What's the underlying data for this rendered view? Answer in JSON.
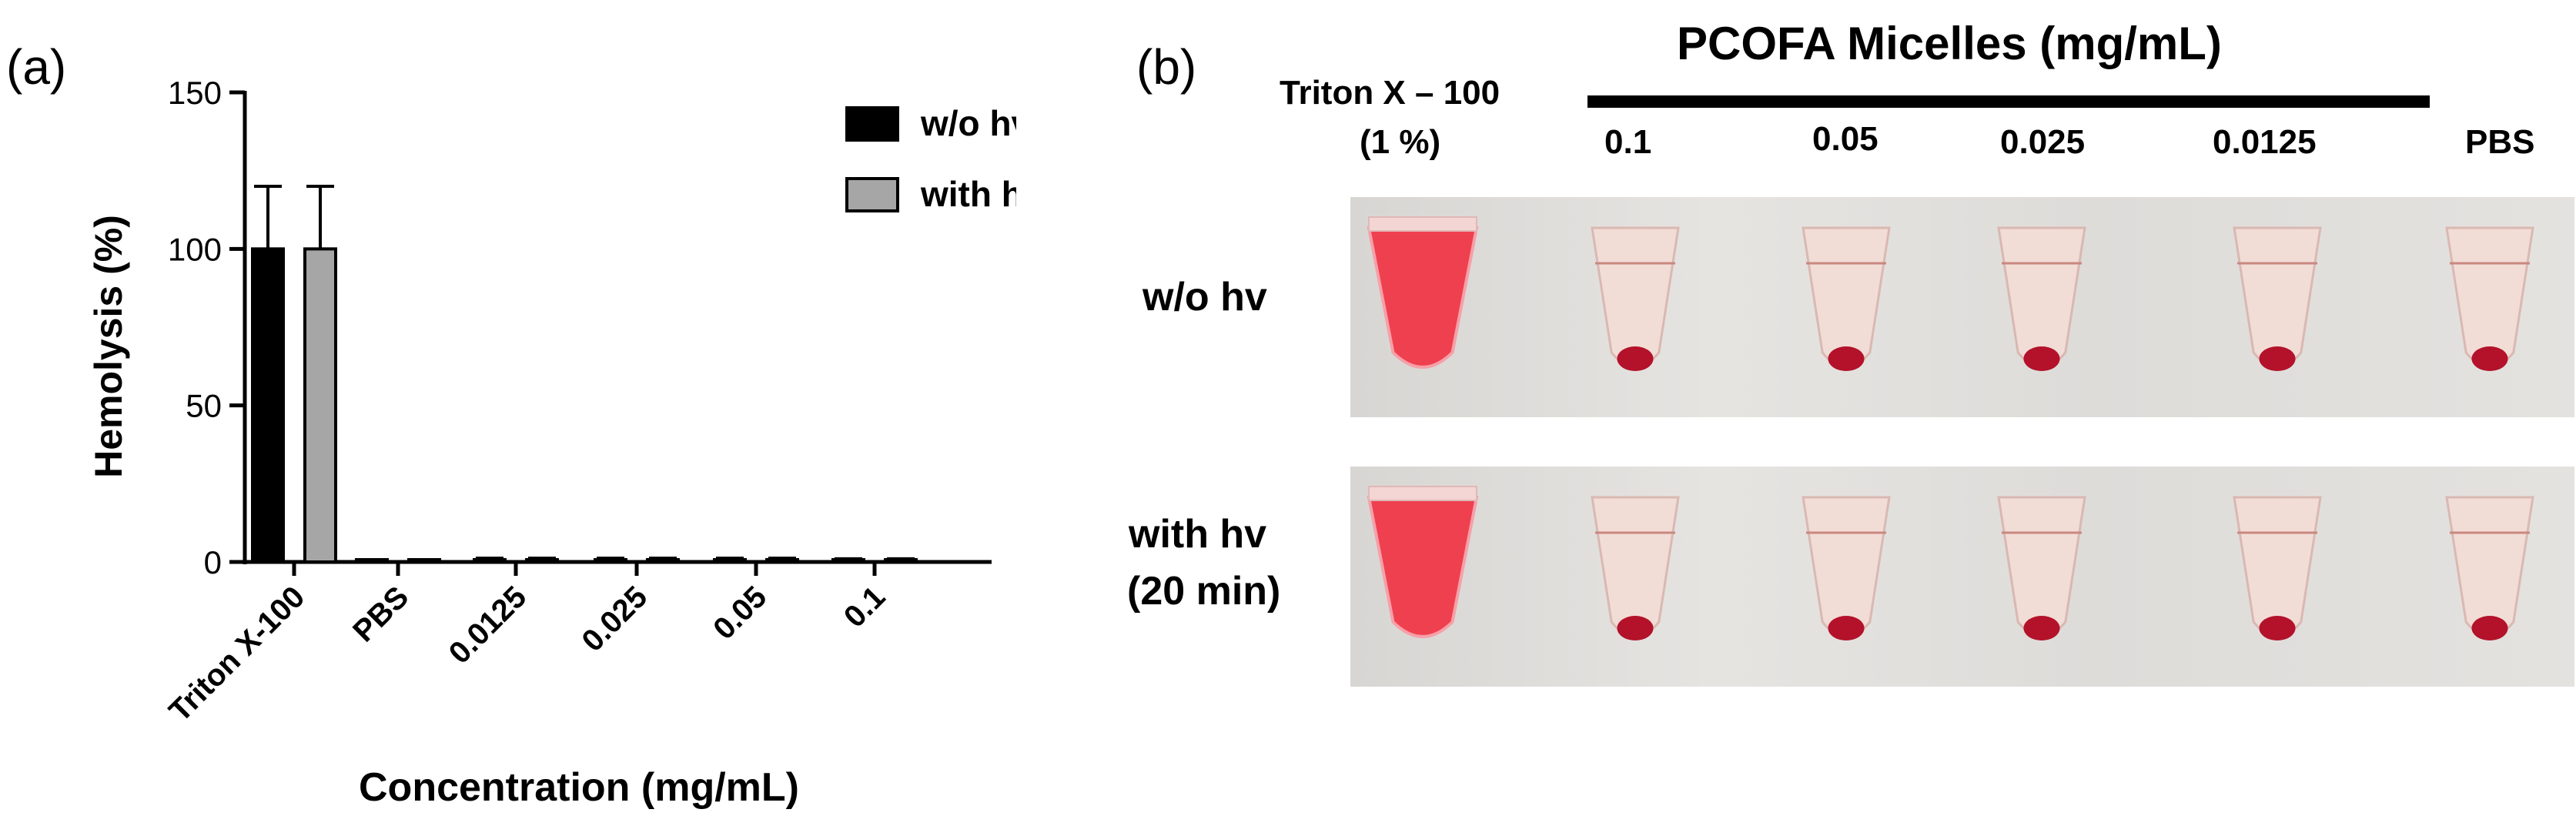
{
  "panel_a": {
    "letter": "(a)",
    "chart_data": {
      "type": "bar",
      "categories": [
        "Triton X-100",
        "PBS",
        "0.0125",
        "0.025",
        "0.05",
        "0.1"
      ],
      "series": [
        {
          "name": "w/o hv",
          "values": [
            100,
            0,
            -0.5,
            -0.5,
            -0.5,
            -0.5
          ],
          "errors": [
            20,
            0.3,
            1.2,
            1.2,
            1.2,
            1.0
          ],
          "color": "#000000"
        },
        {
          "name": "with hv",
          "values": [
            100,
            0,
            -0.5,
            -0.5,
            -0.5,
            -0.5
          ],
          "errors": [
            20,
            0.3,
            1.2,
            1.2,
            1.2,
            1.0
          ],
          "color": "#a6a6a6"
        }
      ],
      "xlabel": "Concentration (mg/mL)",
      "ylabel": "Hemolysis (%)",
      "ylim": [
        0,
        150
      ],
      "yticks": [
        "0",
        "50",
        "100",
        "150"
      ],
      "legend_position": "top-right",
      "grid": false
    }
  },
  "panel_b": {
    "letter": "(b)",
    "header": "PCOFA Micelles (mg/mL)",
    "control_label_line1": "Triton X – 100",
    "control_label_line2": "(1 %)",
    "concentrations": [
      "0.1",
      "0.05",
      "0.025",
      "0.0125"
    ],
    "pbs_label": "PBS",
    "row1_label": "w/o hv",
    "row2_label_line1": "with hv",
    "row2_label_line2": "(20 min)"
  }
}
